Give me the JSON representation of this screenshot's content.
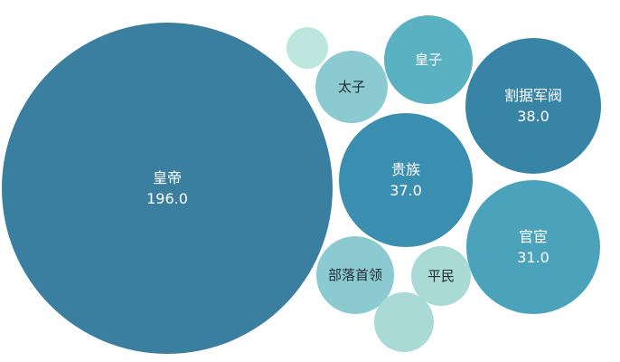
{
  "chart_data": {
    "type": "bubble",
    "title": "",
    "series": [
      {
        "name": "皇帝",
        "value": 196.0,
        "value_label": "196.0",
        "color": "#3a7ea0"
      },
      {
        "name": "割据军阀",
        "value": 38.0,
        "value_label": "38.0",
        "color": "#3784a6"
      },
      {
        "name": "贵族",
        "value": 37.0,
        "value_label": "37.0",
        "color": "#3a8fb1"
      },
      {
        "name": "官宦",
        "value": 31.0,
        "value_label": "31.0",
        "color": "#4aa3bb"
      },
      {
        "name": "皇子",
        "value": null,
        "value_label": null,
        "color": "#5ab1c2"
      },
      {
        "name": "太子",
        "value": null,
        "value_label": null,
        "color": "#8ccad1"
      },
      {
        "name": "部落首领",
        "value": null,
        "value_label": null,
        "color": "#8ccad1"
      },
      {
        "name": "平民",
        "value": null,
        "value_label": null,
        "color": "#a9dad6"
      },
      {
        "name": "",
        "value": null,
        "value_label": null,
        "color": "#a9dad6"
      },
      {
        "name": "",
        "value": null,
        "value_label": null,
        "color": "#bde6de"
      }
    ]
  }
}
